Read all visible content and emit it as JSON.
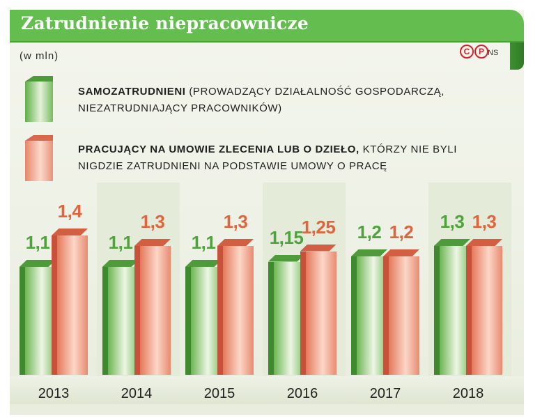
{
  "header": {
    "title": "Zatrudnienie niepracownicze",
    "unit": "(w mln)",
    "credit_icons": [
      "c-icon",
      "p-icon"
    ],
    "credit_symbols": [
      "C",
      "P"
    ],
    "credit_initials": "NS"
  },
  "legend": [
    {
      "bold": "Samozatrudnieni",
      "rest": " (prowadzący działalność gospodarczą, niezatrudniający pracowników)",
      "color": "#64bd4f"
    },
    {
      "bold": "Pracujący na umowie zlecenia lub o dzieło,",
      "rest": " którzy nie byli nigdzie zatrudnieni na podstawie umowy o pracę",
      "color": "#e9785a"
    }
  ],
  "chart_data": {
    "type": "bar",
    "categories": [
      "2013",
      "2014",
      "2015",
      "2016",
      "2017",
      "2018"
    ],
    "series": [
      {
        "name": "Samozatrudnieni",
        "values": [
          1.1,
          1.1,
          1.1,
          1.15,
          1.2,
          1.3
        ],
        "labels": [
          "1,1",
          "1,1",
          "1,1",
          "1,15",
          "1,2",
          "1,3"
        ],
        "color": "#64bd4f"
      },
      {
        "name": "Pracujący na umowie zlecenia lub o dzieło",
        "values": [
          1.4,
          1.3,
          1.3,
          1.25,
          1.2,
          1.3
        ],
        "labels": [
          "1,4",
          "1,3",
          "1,3",
          "1,25",
          "1,2",
          "1,3"
        ],
        "color": "#e9785a"
      }
    ],
    "ylim": [
      0,
      1.45
    ],
    "grid": false
  }
}
